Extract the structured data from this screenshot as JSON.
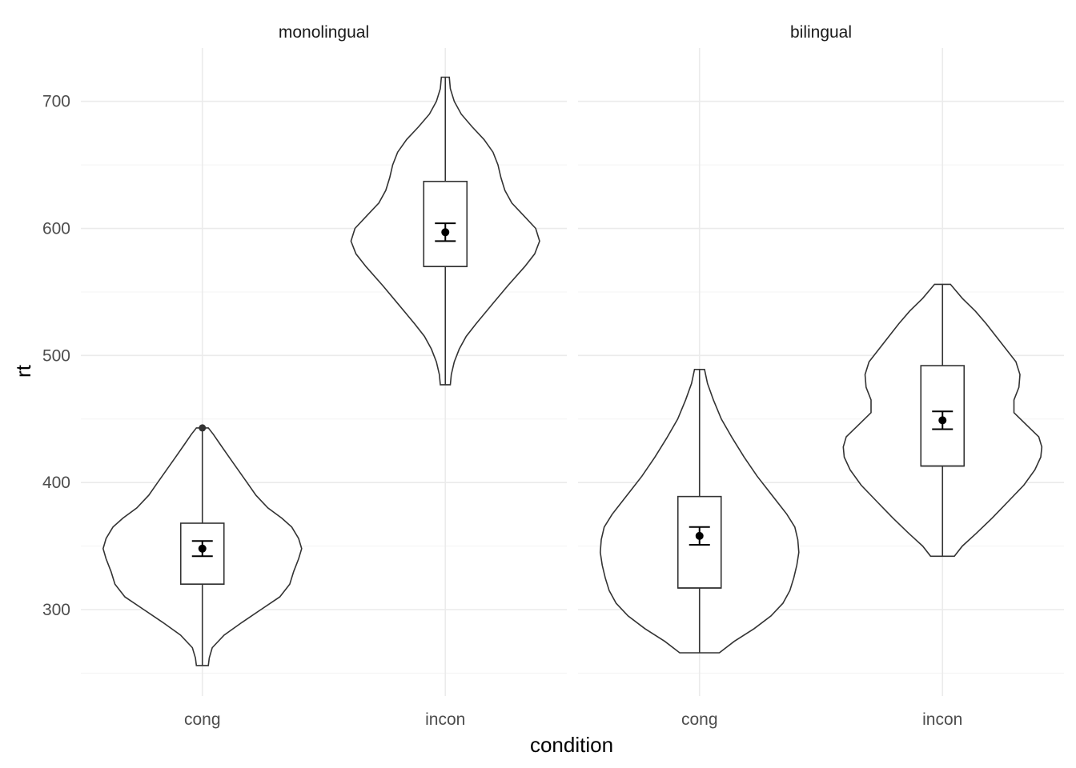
{
  "chart_data": {
    "type": "violin",
    "xlabel": "condition",
    "ylabel": "rt",
    "ylim": [
      232,
      742
    ],
    "y_ticks": [
      300,
      400,
      500,
      600,
      700
    ],
    "y_minor_ticks": [
      250,
      350,
      450,
      550,
      650
    ],
    "categories": [
      "cong",
      "incon"
    ],
    "grid": true,
    "panels": [
      {
        "label": "monolingual",
        "groups": [
          {
            "category": "cong",
            "min": 256,
            "max": 443,
            "box": {
              "q1": 320,
              "median": 320,
              "q3": 368
            },
            "mean": 348,
            "ci": [
              342,
              354
            ],
            "outliers": [
              443
            ],
            "density": [
              [
                256,
                0.06
              ],
              [
                262,
                0.07
              ],
              [
                270,
                0.1
              ],
              [
                280,
                0.22
              ],
              [
                290,
                0.4
              ],
              [
                300,
                0.59
              ],
              [
                310,
                0.78
              ],
              [
                320,
                0.88
              ],
              [
                330,
                0.92
              ],
              [
                340,
                0.97
              ],
              [
                348,
                1.0
              ],
              [
                356,
                0.97
              ],
              [
                365,
                0.9
              ],
              [
                372,
                0.8
              ],
              [
                380,
                0.66
              ],
              [
                390,
                0.54
              ],
              [
                400,
                0.45
              ],
              [
                410,
                0.36
              ],
              [
                420,
                0.27
              ],
              [
                430,
                0.18
              ],
              [
                438,
                0.11
              ],
              [
                443,
                0.06
              ]
            ]
          },
          {
            "category": "incon",
            "min": 477,
            "max": 719,
            "box": {
              "q1": 570,
              "median": 570,
              "q3": 637
            },
            "mean": 597,
            "ci": [
              590,
              604
            ],
            "outliers": [],
            "density": [
              [
                477,
                0.05
              ],
              [
                485,
                0.06
              ],
              [
                495,
                0.09
              ],
              [
                505,
                0.14
              ],
              [
                515,
                0.21
              ],
              [
                525,
                0.31
              ],
              [
                540,
                0.47
              ],
              [
                555,
                0.63
              ],
              [
                570,
                0.8
              ],
              [
                580,
                0.9
              ],
              [
                590,
                0.95
              ],
              [
                600,
                0.91
              ],
              [
                610,
                0.79
              ],
              [
                620,
                0.67
              ],
              [
                630,
                0.6
              ],
              [
                640,
                0.56
              ],
              [
                650,
                0.53
              ],
              [
                660,
                0.48
              ],
              [
                670,
                0.39
              ],
              [
                680,
                0.27
              ],
              [
                690,
                0.16
              ],
              [
                700,
                0.09
              ],
              [
                710,
                0.05
              ],
              [
                719,
                0.04
              ]
            ]
          }
        ]
      },
      {
        "label": "bilingual",
        "groups": [
          {
            "category": "cong",
            "min": 266,
            "max": 489,
            "box": {
              "q1": 317,
              "median": 317,
              "q3": 389
            },
            "mean": 358,
            "ci": [
              351,
              365
            ],
            "outliers": [],
            "density": [
              [
                266,
                0.2
              ],
              [
                275,
                0.35
              ],
              [
                285,
                0.55
              ],
              [
                295,
                0.72
              ],
              [
                305,
                0.84
              ],
              [
                315,
                0.91
              ],
              [
                325,
                0.95
              ],
              [
                335,
                0.98
              ],
              [
                345,
                1.0
              ],
              [
                355,
                0.99
              ],
              [
                365,
                0.96
              ],
              [
                375,
                0.88
              ],
              [
                385,
                0.78
              ],
              [
                395,
                0.68
              ],
              [
                405,
                0.58
              ],
              [
                420,
                0.45
              ],
              [
                435,
                0.33
              ],
              [
                450,
                0.22
              ],
              [
                465,
                0.14
              ],
              [
                478,
                0.08
              ],
              [
                489,
                0.05
              ]
            ]
          },
          {
            "category": "incon",
            "min": 342,
            "max": 556,
            "box": {
              "q1": 413,
              "median": 413,
              "q3": 492
            },
            "mean": 449,
            "ci": [
              442,
              456
            ],
            "outliers": [],
            "density": [
              [
                342,
                0.12
              ],
              [
                350,
                0.2
              ],
              [
                360,
                0.34
              ],
              [
                372,
                0.5
              ],
              [
                385,
                0.66
              ],
              [
                398,
                0.82
              ],
              [
                410,
                0.93
              ],
              [
                420,
                0.99
              ],
              [
                428,
                1.0
              ],
              [
                436,
                0.97
              ],
              [
                445,
                0.85
              ],
              [
                455,
                0.72
              ],
              [
                465,
                0.72
              ],
              [
                475,
                0.77
              ],
              [
                485,
                0.78
              ],
              [
                495,
                0.74
              ],
              [
                505,
                0.64
              ],
              [
                515,
                0.54
              ],
              [
                525,
                0.44
              ],
              [
                535,
                0.33
              ],
              [
                545,
                0.2
              ],
              [
                556,
                0.08
              ]
            ]
          }
        ]
      }
    ]
  }
}
